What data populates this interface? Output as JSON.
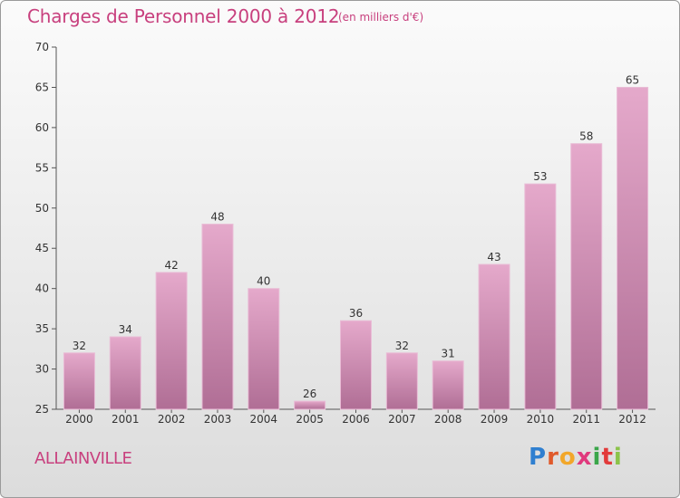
{
  "title": "Charges de Personnel 2000 à 2012",
  "subtitle": "(en milliers d'€)",
  "commune": "ALLAINVILLE",
  "logo_text": "Proxiti",
  "colors": {
    "bar": "#d98fb8",
    "bar_top": "#e3a6c9",
    "bar_bottom": "#b7729a",
    "text_accent": "#c8407e"
  },
  "chart_data": {
    "type": "bar",
    "title": "Charges de Personnel 2000 à 2012",
    "subtitle": "(en milliers d'€)",
    "categories": [
      "2000",
      "2001",
      "2002",
      "2003",
      "2004",
      "2005",
      "2006",
      "2007",
      "2008",
      "2009",
      "2010",
      "2011",
      "2012"
    ],
    "values": [
      32,
      34,
      42,
      48,
      40,
      26,
      36,
      32,
      31,
      43,
      53,
      58,
      65
    ],
    "ylim": [
      25,
      70
    ],
    "yticks": [
      25,
      30,
      35,
      40,
      45,
      50,
      55,
      60,
      65,
      70
    ],
    "grid": false,
    "data_labels": true
  }
}
